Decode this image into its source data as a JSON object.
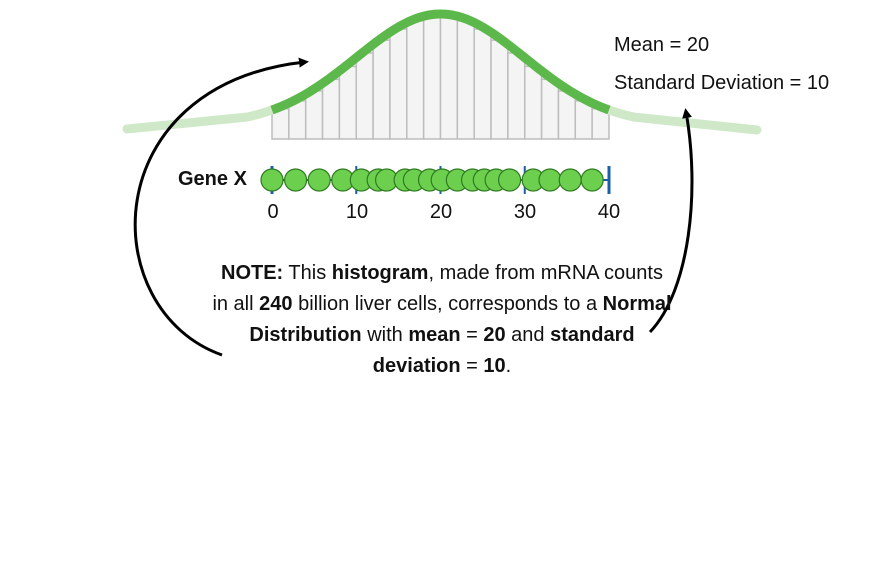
{
  "stats": {
    "mean_label": "Mean = 20",
    "sd_label": "Standard Deviation = 10"
  },
  "gene_label": "Gene X",
  "axis": {
    "ticks": [
      "0",
      "10",
      "20",
      "30",
      "40"
    ]
  },
  "note": {
    "p1": "NOTE:",
    "p2": " This ",
    "p3": "histogram",
    "p4": ", made from mRNA counts in all ",
    "p5": "240",
    "p6": " billion liver cells, corresponds to a ",
    "p7": "Normal Distribution",
    "p8": " with ",
    "p9": "mean",
    "p10": " = ",
    "p11": "20",
    "p12": " and ",
    "p13": "standard deviation",
    "p14": " = ",
    "p15": "10",
    "p16": "."
  },
  "chart_data": {
    "type": "histogram",
    "distribution": {
      "mean": 20,
      "sd": 10
    },
    "xlim": [
      0,
      40
    ],
    "bin_edges": [
      0,
      2,
      4,
      6,
      8,
      10,
      12,
      14,
      16,
      18,
      20,
      22,
      24,
      26,
      28,
      30,
      32,
      34,
      36,
      38,
      40
    ],
    "samples": [
      0,
      2.8,
      5.6,
      8.4,
      10.6,
      12.6,
      13.6,
      15.8,
      16.9,
      18.7,
      20.2,
      22.0,
      23.8,
      25.2,
      26.6,
      28.2,
      31.0,
      33.0,
      35.4,
      38.0
    ],
    "colors": {
      "curve": "#5cb84a",
      "curve_faded": "#cfe9c8",
      "dots": "#6cd04e",
      "dot_stroke": "#2f7a22",
      "axis": "#1a5fa8",
      "bars": "#bdbdbd",
      "bars_fill": "#f4f4f4"
    }
  }
}
